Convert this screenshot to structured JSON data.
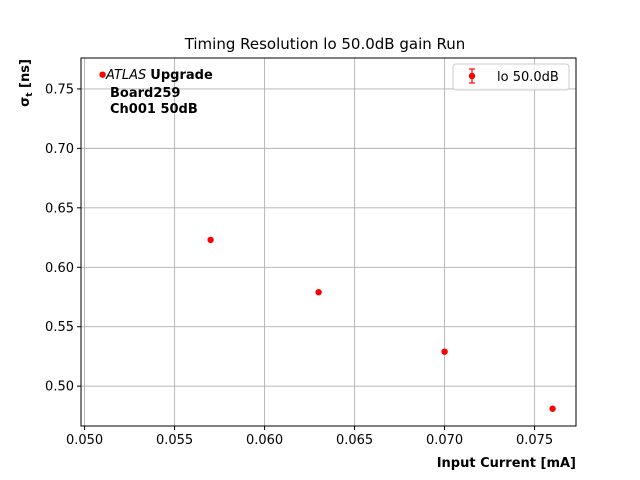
{
  "chart_data": {
    "type": "scatter",
    "title": "Timing Resolution lo 50.0dB gain Run",
    "xlabel": "Input Current [mA]",
    "ylabel_main": "σ",
    "ylabel_sub": "t",
    "ylabel_unit": " [ns]",
    "xlim": [
      0.0498,
      0.0773
    ],
    "ylim": [
      0.4665,
      0.776
    ],
    "x_ticks": [
      0.05,
      0.055,
      0.06,
      0.065,
      0.07,
      0.075
    ],
    "x_tick_labels": [
      "0.050",
      "0.055",
      "0.060",
      "0.065",
      "0.070",
      "0.075"
    ],
    "y_ticks": [
      0.5,
      0.55,
      0.6,
      0.65,
      0.7,
      0.75
    ],
    "y_tick_labels": [
      "0.50",
      "0.55",
      "0.60",
      "0.65",
      "0.70",
      "0.75"
    ],
    "grid": true,
    "legend_position": "top-right",
    "series": [
      {
        "name": "lo 50.0dB",
        "color": "#ff0000",
        "marker": "circle",
        "x": [
          0.051,
          0.057,
          0.063,
          0.07,
          0.076
        ],
        "y": [
          0.762,
          0.623,
          0.579,
          0.529,
          0.481
        ]
      }
    ],
    "annotation": {
      "atlas": "ATLAS",
      "upgrade": "Upgrade",
      "line2": "Board259",
      "line3": "Ch001 50dB"
    }
  }
}
